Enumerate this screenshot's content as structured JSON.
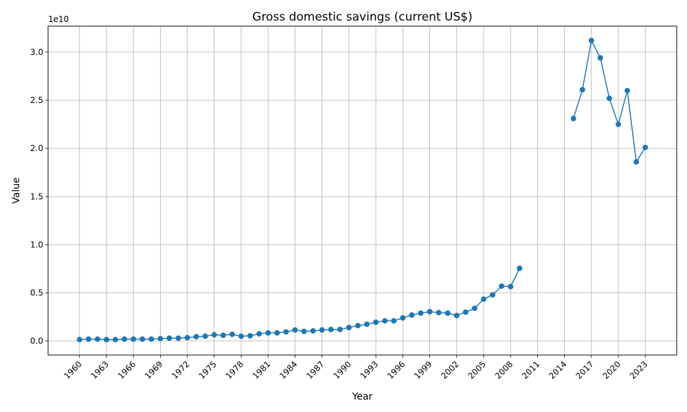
{
  "chart_data": {
    "type": "line",
    "title": "Gross domestic savings (current US$)",
    "xlabel": "Year",
    "ylabel": "Value",
    "y_offset_label": "1e10",
    "y_scale": 10000000000.0,
    "xlim": [
      1956.5,
      2026.5
    ],
    "ylim": [
      -1450000000.0,
      32700000000.0
    ],
    "x_ticks": [
      1960,
      1963,
      1966,
      1969,
      1972,
      1975,
      1978,
      1981,
      1984,
      1987,
      1990,
      1993,
      1996,
      1999,
      2002,
      2005,
      2008,
      2011,
      2014,
      2017,
      2020,
      2023
    ],
    "x_tick_labels": [
      "1960",
      "1963",
      "1966",
      "1969",
      "1972",
      "1975",
      "1978",
      "1981",
      "1984",
      "1987",
      "1990",
      "1993",
      "1996",
      "1999",
      "2002",
      "2005",
      "2008",
      "2011",
      "2014",
      "2017",
      "2020",
      "2023"
    ],
    "y_ticks": [
      0,
      5000000000.0,
      10000000000.0,
      15000000000.0,
      20000000000.0,
      25000000000.0,
      30000000000.0
    ],
    "y_tick_labels": [
      "0.0",
      "0.5",
      "1.0",
      "1.5",
      "2.0",
      "2.5",
      "3.0"
    ],
    "grid": true,
    "color": "#1f77b4",
    "series": [
      {
        "x": [
          1960,
          1961,
          1962,
          1963,
          1964,
          1965,
          1966,
          1967,
          1968,
          1969,
          1970,
          1971,
          1972,
          1973,
          1974,
          1975,
          1976,
          1977,
          1978,
          1979,
          1980,
          1981,
          1982,
          1983,
          1984,
          1985,
          1986,
          1987,
          1988,
          1989,
          1990,
          1991,
          1992,
          1993,
          1994,
          1995,
          1996,
          1997,
          1998,
          1999,
          2000,
          2001,
          2002,
          2003,
          2004,
          2005,
          2006,
          2007,
          2008,
          2009,
          2010,
          2011,
          2012,
          2013,
          2014,
          2015,
          2016,
          2017,
          2018,
          2019,
          2020,
          2021,
          2022,
          2023
        ],
        "values": [
          150000000.0,
          200000000.0,
          200000000.0,
          150000000.0,
          150000000.0,
          200000000.0,
          200000000.0,
          200000000.0,
          200000000.0,
          250000000.0,
          300000000.0,
          300000000.0,
          350000000.0,
          450000000.0,
          500000000.0,
          650000000.0,
          600000000.0,
          700000000.0,
          500000000.0,
          550000000.0,
          750000000.0,
          850000000.0,
          850000000.0,
          950000000.0,
          1150000000.0,
          1000000000.0,
          1050000000.0,
          1150000000.0,
          1200000000.0,
          1200000000.0,
          1400000000.0,
          1600000000.0,
          1750000000.0,
          1950000000.0,
          2100000000.0,
          2100000000.0,
          2400000000.0,
          2700000000.0,
          2900000000.0,
          3050000000.0,
          2950000000.0,
          2900000000.0,
          2650000000.0,
          3000000000.0,
          3400000000.0,
          4350000000.0,
          4800000000.0,
          5700000000.0,
          5650000000.0,
          7550000000.0,
          null,
          null,
          null,
          null,
          null,
          23100000000.0,
          26100000000.0,
          31200000000.0,
          29400000000.0,
          25200000000.0,
          22500000000.0,
          26000000000.0,
          18600000000.0,
          20100000000.0
        ]
      }
    ]
  }
}
